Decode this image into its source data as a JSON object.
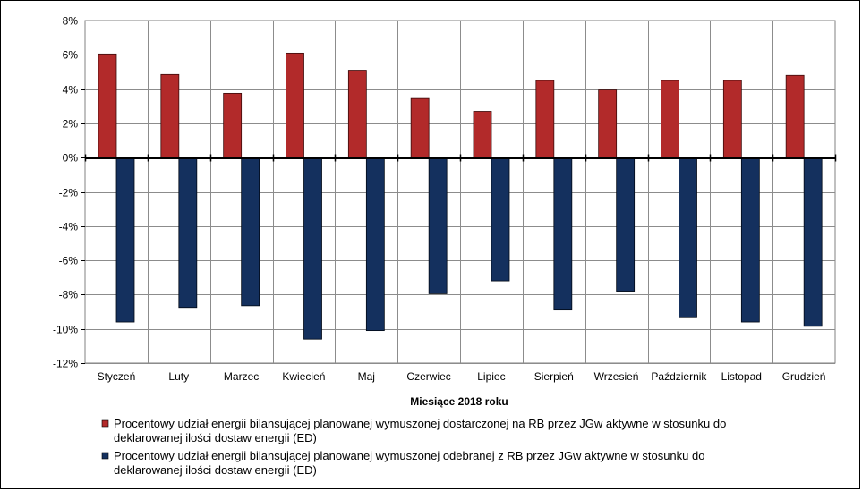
{
  "chart_data": {
    "type": "bar",
    "xlabel": "Miesiące 2018 roku",
    "ylabel": "",
    "ylim": [
      -12,
      8
    ],
    "yticks": [
      8,
      6,
      4,
      2,
      0,
      -2,
      -4,
      -6,
      -8,
      -10,
      -12
    ],
    "ytick_labels": [
      "8%",
      "6%",
      "4%",
      "2%",
      "0%",
      "-2%",
      "-4%",
      "-6%",
      "-8%",
      "-10%",
      "-12%"
    ],
    "grid": true,
    "legend_position": "bottom",
    "categories": [
      "Styczeń",
      "Luty",
      "Marzec",
      "Kwiecień",
      "Maj",
      "Czerwiec",
      "Lipiec",
      "Sierpień",
      "Wrzesień",
      "Październik",
      "Listopad",
      "Grudzień"
    ],
    "series": [
      {
        "name": "Procentowy udział energii bilansującej planowanej wymuszonej dostarczonej na RB przez JGw aktywne w stosunku do deklarowanej ilości dostaw energii (ED)",
        "name_lines": [
          "Procentowy udział energii bilansującej planowanej wymuszonej dostarczonej na RB przez JGw aktywne w stosunku do",
          "deklarowanej ilości dostaw energii (ED)"
        ],
        "color": "#B22A2A",
        "values": [
          6.05,
          4.85,
          3.75,
          6.1,
          5.1,
          3.45,
          2.7,
          4.5,
          3.95,
          4.5,
          4.5,
          4.8
        ]
      },
      {
        "name": "Procentowy udział energii bilansującej planowanej wymuszonej odebranej z RB przez JGw aktywne w stosunku do deklarowanej ilości dostaw energii (ED)",
        "name_lines": [
          "Procentowy udział energii bilansującej planowanej wymuszonej odebranej z RB przez JGw aktywne w stosunku do",
          "deklarowanej ilości dostaw energii (ED)"
        ],
        "color": "#14305E",
        "values": [
          -9.6,
          -8.75,
          -8.65,
          -10.6,
          -10.1,
          -7.95,
          -7.2,
          -8.9,
          -7.8,
          -9.35,
          -9.6,
          -9.85
        ]
      }
    ]
  }
}
